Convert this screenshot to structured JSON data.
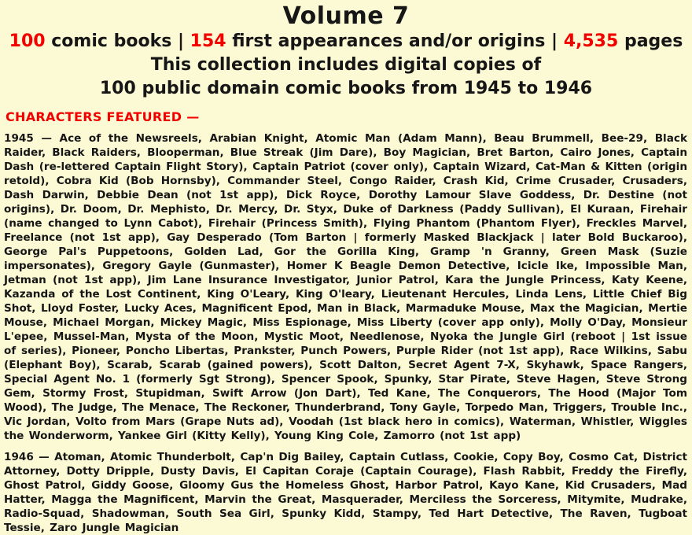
{
  "colors": {
    "background": "#FCFAD4",
    "accent_red": "#F20000",
    "text": "#161616"
  },
  "header": {
    "title": "Volume 7",
    "stats": {
      "books_count": "100",
      "books_label": " comic books | ",
      "appearances_count": "154",
      "appearances_label": " first appearances and/or origins | ",
      "pages_count": "4,535",
      "pages_label": " pages"
    },
    "subtitle_line1": "This collection includes digital copies of",
    "subtitle_line2": "100 public domain comic books from 1945 to 1946"
  },
  "characters_featured": {
    "heading": "CHARACTERS FEATURED —",
    "groups": [
      {
        "year_label": "1945 — ",
        "list": "Ace of the Newsreels, Arabian Knight, Atomic Man (Adam Mann), Beau Brummell, Bee-29, Black Raider, Black Raiders, Blooperman, Blue Streak (Jim Dare), Boy Magician, Bret Barton, Cairo Jones, Captain Dash (re-lettered Captain Flight Story), Captain Patriot (cover only), Captain Wizard, Cat-Man & Kitten (origin retold), Cobra Kid (Bob Hornsby), Commander Steel, Congo Raider, Crash Kid, Crime Crusader, Crusaders, Dash Darwin, Debbie Dean (not 1st app), Dick Royce, Dorothy Lamour Slave Goddess, Dr. Destine (not origins), Dr. Doom, Dr. Mephisto, Dr. Mercy, Dr. Styx, Duke of Darkness (Paddy Sullivan), El Kuraan, Firehair (name changed to Lynn Cabot), Firehair (Princess Smith), Flying Phantom (Phantom Flyer), Freckles Marvel, Freelance (not 1st app), Gay Desperado (Tom Barton | formerly Masked Blackjack | later Bold Buckaroo), George Pal's Puppetoons, Golden Lad, Gor the Gorilla King, Gramp 'n Granny, Green Mask (Suzie impersonates), Gregory Gayle (Gunmaster), Homer K Beagle Demon Detective, Icicle Ike, Impossible Man, Jetman (not 1st app), Jim Lane Insurance Investigator, Junior Patrol, Kara the Jungle Princess, Katy Keene, Kazanda of the Lost Continent, King O'Leary, King O'leary, Lieutenant Hercules, Linda Lens, Little Chief Big Shot, Lloyd Foster, Lucky Aces, Magnificent Epod, Man in Black, Marmaduke Mouse, Max the Magician, Mertie Mouse, Michael Morgan, Mickey Magic, Miss Espionage, Miss Liberty (cover app only), Molly O'Day, Monsieur L'epee, Mussel-Man, Mysta of the Moon, Mystic Moot, Needlenose, Nyoka the Jungle Girl (reboot | 1st issue of series), Pioneer, Poncho Libertas, Prankster, Punch Powers, Purple Rider (not 1st app), Race Wilkins, Sabu (Elephant Boy), Scarab, Scarab (gained powers), Scott Dalton, Secret Agent 7-X, Skyhawk, Space Rangers, Special Agent No. 1 (formerly Sgt Strong), Spencer Spook, Spunky, Star Pirate, Steve Hagen, Steve Strong Gem, Stormy Frost, Stupidman, Swift Arrow (Jon Dart), Ted Kane, The Conquerors, The Hood (Major Tom Wood), The Judge, The Menace, The Reckoner, Thunderbrand, Tony Gayle, Torpedo Man, Triggers, Trouble Inc., Vic Jordan, Volto from Mars (Grape Nuts ad), Voodah (1st black hero in comics), Waterman, Whistler, Wiggles the Wonderworm, Yankee Girl (Kitty Kelly), Young King Cole, Zamorro (not 1st app)"
      },
      {
        "year_label": "1946 — ",
        "list": "Atoman, Atomic Thunderbolt, Cap'n Dig Bailey, Captain Cutlass, Cookie, Copy Boy, Cosmo Cat, District Attorney, Dotty Dripple, Dusty Davis, El Capitan Coraje (Captain Courage), Flash Rabbit, Freddy the Firefly, Ghost Patrol, Giddy Goose, Gloomy Gus the Homeless Ghost, Harbor Patrol, Kayo Kane, Kid Crusaders, Mad Hatter, Magga the Magnificent, Marvin the Great, Masquerader, Merciless the Sorceress, Mitymite, Mudrake, Radio-Squad, Shadowman, South Sea Girl, Spunky Kidd, Stampy, Ted Hart Detective, The Raven, Tugboat Tessie, Zaro Jungle Magician"
      }
    ]
  }
}
